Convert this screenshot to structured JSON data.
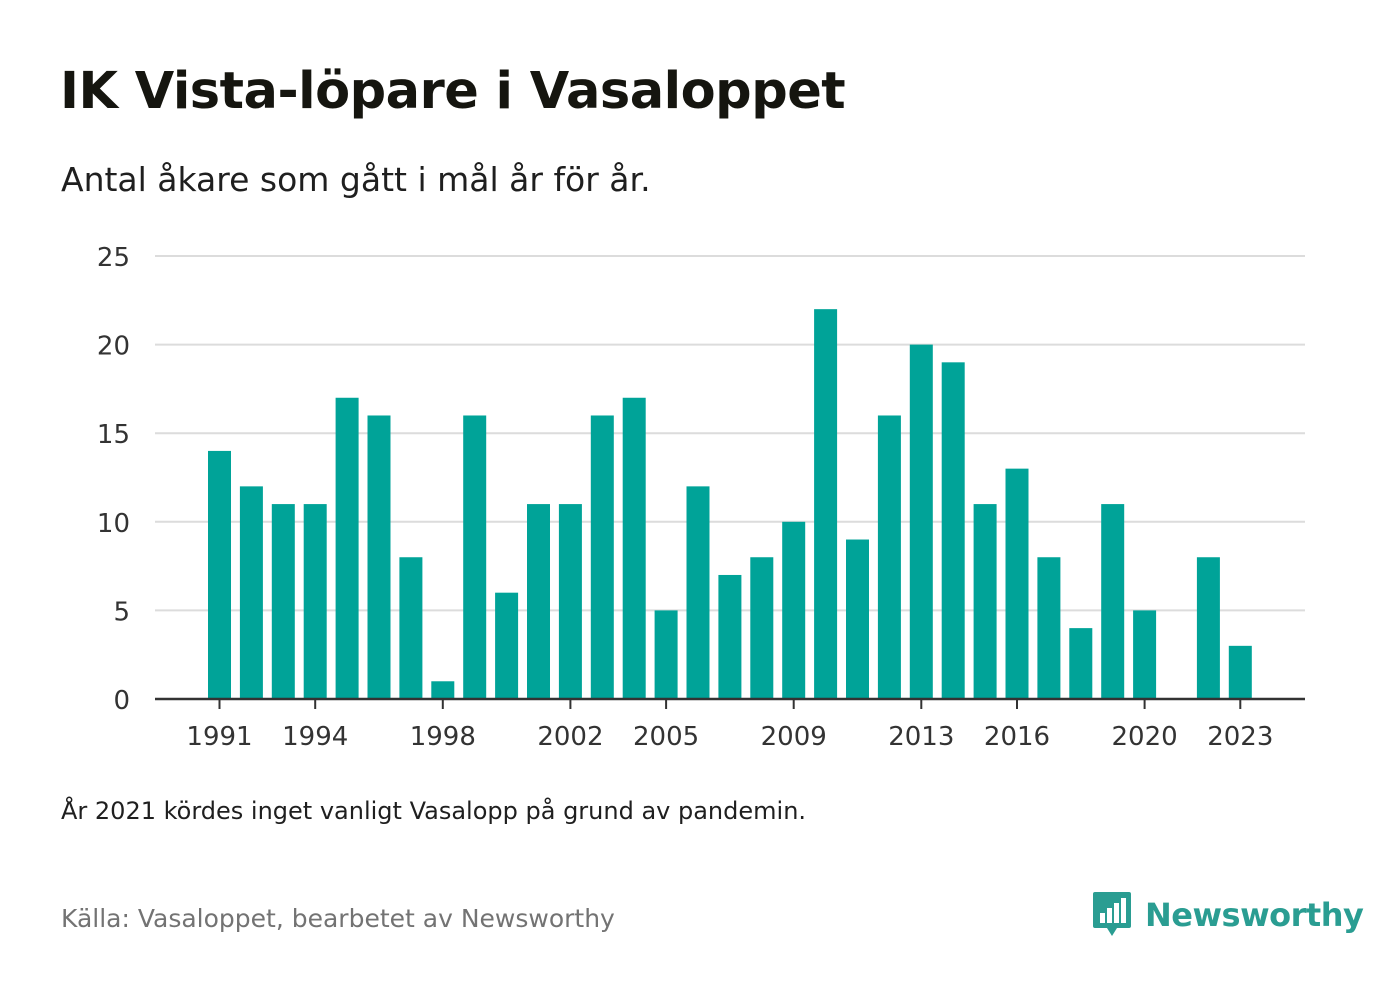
{
  "title": "IK Vista-löpare i Vasaloppet",
  "subtitle": "Antal åkare som gått i mål år för år.",
  "note": "År 2021 kördes inget vanligt Vasalopp på grund av pandemin.",
  "source": "Källa: Vasaloppet, bearbetet av Newsworthy",
  "brand": {
    "name": "Newsworthy",
    "icon": "newsworthy-logo-icon",
    "color": "#2a9d92"
  },
  "colors": {
    "bar": "#00a398",
    "grid": "#dcdcdc",
    "axis": "#333333",
    "tick_text": "#333333"
  },
  "chart_data": {
    "type": "bar",
    "title": "IK Vista-löpare i Vasaloppet",
    "subtitle": "Antal åkare som gått i mål år för år.",
    "xlabel": "",
    "ylabel": "",
    "ylim": [
      0,
      25
    ],
    "yticks": [
      0,
      5,
      10,
      15,
      20,
      25
    ],
    "grid": true,
    "categories": [
      1991,
      1992,
      1993,
      1994,
      1995,
      1996,
      1997,
      1998,
      1999,
      2000,
      2001,
      2002,
      2003,
      2004,
      2005,
      2006,
      2007,
      2008,
      2009,
      2010,
      2011,
      2012,
      2013,
      2014,
      2015,
      2016,
      2017,
      2018,
      2019,
      2020,
      2021,
      2022,
      2023
    ],
    "values": [
      14,
      12,
      11,
      11,
      17,
      16,
      8,
      1,
      16,
      6,
      11,
      11,
      16,
      17,
      5,
      12,
      7,
      8,
      10,
      22,
      9,
      16,
      20,
      19,
      11,
      13,
      8,
      4,
      11,
      5,
      0,
      8,
      3
    ],
    "xtick_labels": [
      "1991",
      "1994",
      "1998",
      "2002",
      "2005",
      "2009",
      "2013",
      "2016",
      "2020",
      "2023"
    ]
  }
}
